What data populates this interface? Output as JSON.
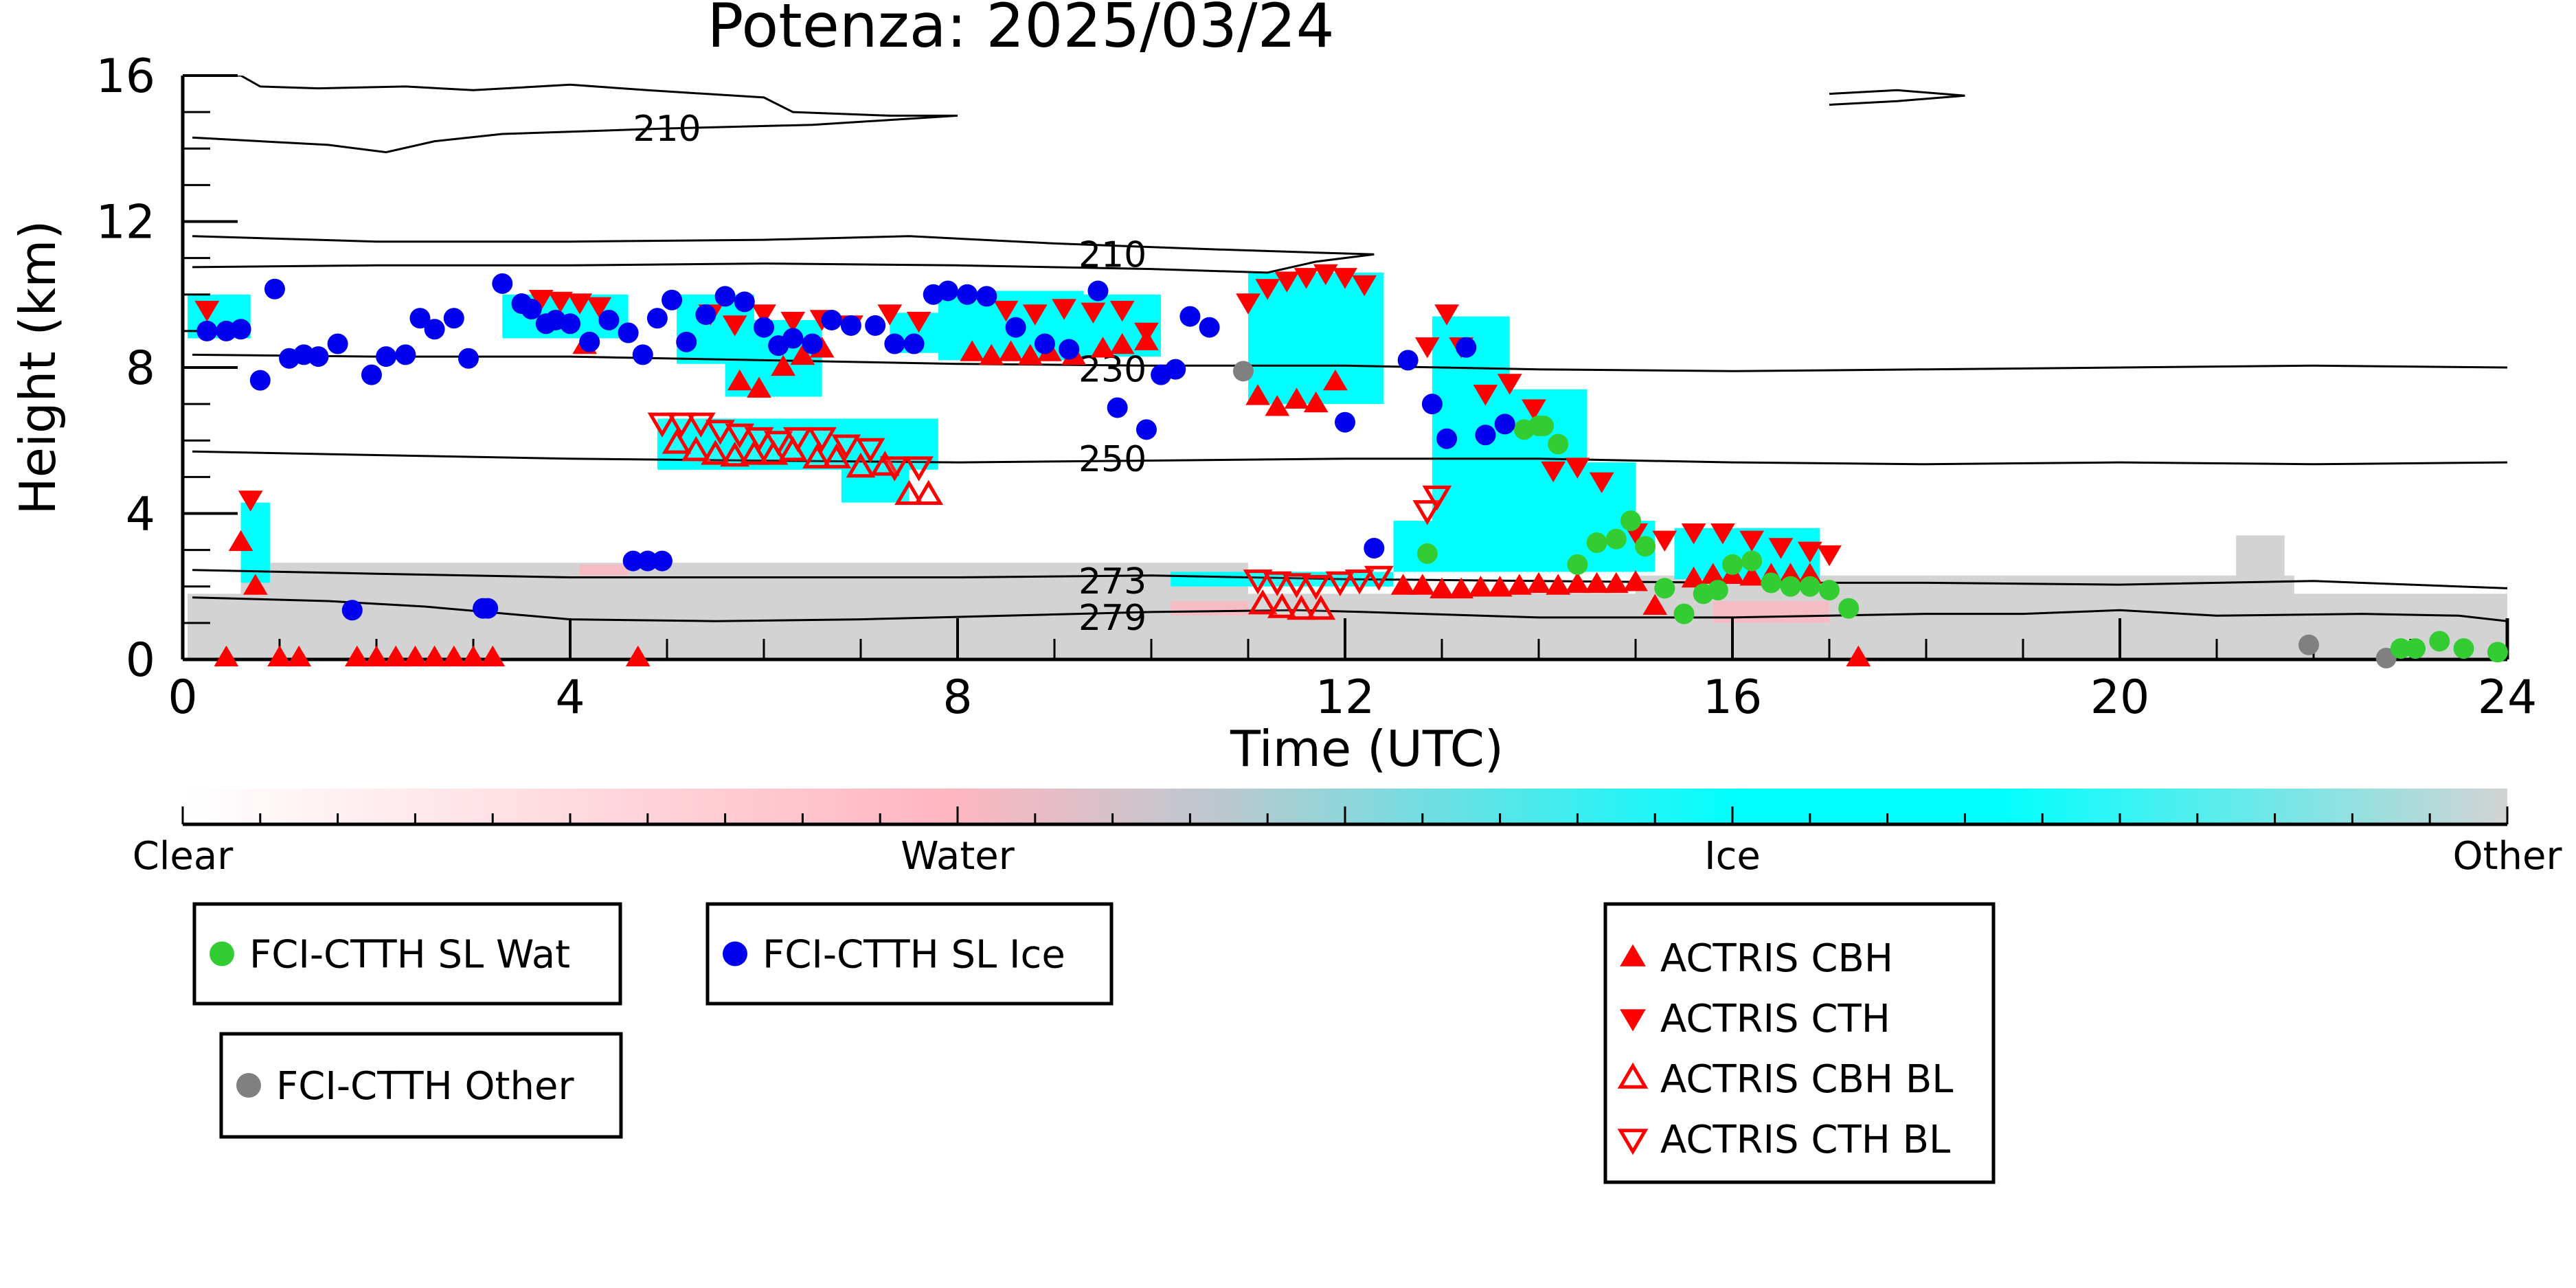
{
  "chart_data": {
    "type": "scatter",
    "title": "Potenza: 2025/03/24",
    "xlabel": "Time (UTC)",
    "ylabel": "Height (km)",
    "xlim": [
      0,
      24
    ],
    "ylim": [
      0,
      16
    ],
    "x_ticks": [
      "0",
      "4",
      "8",
      "12",
      "16",
      "20",
      "24"
    ],
    "y_ticks": [
      "0",
      "4",
      "8",
      "12",
      "16"
    ],
    "grid": false,
    "colors": {
      "water": "#00cc33",
      "wat_marker": "#33cc33",
      "ice_marker": "#0000ee",
      "other_marker": "#808080",
      "actris": "#ff0000",
      "ice_fill": "#00ffff",
      "other_fill": "#d3d3d3",
      "water_fill": "#ffb6c1"
    },
    "colorbar": {
      "labels": [
        "Clear",
        "Water",
        "Ice",
        "Other"
      ],
      "stops": [
        "#ffffff",
        "#ffb6c1",
        "#00ffff",
        "#d3d3d3"
      ]
    },
    "contours": [
      {
        "label": "210",
        "points": [
          [
            0.1,
            16.0
          ],
          [
            0.6,
            16.0
          ],
          [
            0.8,
            15.7
          ],
          [
            1.4,
            15.65
          ],
          [
            2.3,
            15.7
          ],
          [
            3.0,
            15.6
          ],
          [
            4.0,
            15.75
          ],
          [
            4.8,
            15.6
          ],
          [
            6.0,
            15.4
          ],
          [
            6.3,
            15.0
          ],
          [
            7.3,
            14.9
          ],
          [
            8.0,
            14.9
          ],
          [
            6.5,
            14.65
          ],
          [
            5.0,
            14.55
          ],
          [
            3.3,
            14.4
          ],
          [
            2.6,
            14.2
          ],
          [
            2.1,
            13.9
          ],
          [
            1.5,
            14.1
          ],
          [
            0.1,
            14.3
          ]
        ]
      },
      {
        "label": "210",
        "points": [
          [
            0.1,
            11.6
          ],
          [
            2.0,
            11.45
          ],
          [
            4.0,
            11.45
          ],
          [
            6.0,
            11.5
          ],
          [
            7.5,
            11.6
          ],
          [
            9.0,
            11.4
          ],
          [
            10.5,
            11.25
          ],
          [
            11.7,
            11.15
          ],
          [
            12.3,
            11.1
          ],
          [
            11.7,
            10.9
          ],
          [
            11.2,
            10.6
          ],
          [
            10.0,
            10.7
          ],
          [
            8.0,
            10.8
          ],
          [
            6.0,
            10.85
          ],
          [
            4.0,
            10.8
          ],
          [
            2.0,
            10.8
          ],
          [
            0.1,
            10.75
          ]
        ]
      },
      {
        "label": "",
        "points": [
          [
            17.0,
            15.2
          ],
          [
            17.7,
            15.3
          ],
          [
            18.4,
            15.45
          ],
          [
            17.7,
            15.6
          ],
          [
            17.0,
            15.5
          ]
        ]
      },
      {
        "label": "230",
        "points": [
          [
            0.1,
            8.35
          ],
          [
            2.0,
            8.3
          ],
          [
            4.0,
            8.3
          ],
          [
            6.0,
            8.2
          ],
          [
            8.0,
            8.1
          ],
          [
            10.0,
            8.05
          ],
          [
            12.0,
            8.05
          ],
          [
            14.0,
            7.95
          ],
          [
            16.0,
            7.9
          ],
          [
            18.0,
            7.95
          ],
          [
            20.0,
            8.0
          ],
          [
            22.0,
            8.05
          ],
          [
            24.0,
            8.0
          ]
        ]
      },
      {
        "label": "250",
        "points": [
          [
            0.1,
            5.7
          ],
          [
            2.0,
            5.6
          ],
          [
            4.0,
            5.5
          ],
          [
            6.0,
            5.45
          ],
          [
            8.0,
            5.4
          ],
          [
            10.0,
            5.45
          ],
          [
            12.0,
            5.5
          ],
          [
            14.0,
            5.5
          ],
          [
            16.0,
            5.4
          ],
          [
            18.0,
            5.35
          ],
          [
            20.0,
            5.4
          ],
          [
            22.0,
            5.35
          ],
          [
            24.0,
            5.4
          ]
        ]
      },
      {
        "label": "273",
        "points": [
          [
            0.1,
            2.45
          ],
          [
            2.0,
            2.35
          ],
          [
            4.0,
            2.25
          ],
          [
            6.0,
            2.25
          ],
          [
            8.0,
            2.25
          ],
          [
            10.0,
            2.3
          ],
          [
            11.0,
            2.25
          ],
          [
            12.0,
            2.2
          ],
          [
            14.0,
            2.15
          ],
          [
            16.0,
            2.1
          ],
          [
            18.0,
            2.1
          ],
          [
            20.0,
            2.05
          ],
          [
            22.0,
            2.15
          ],
          [
            24.0,
            1.95
          ]
        ]
      },
      {
        "label": "279",
        "points": [
          [
            0.1,
            1.7
          ],
          [
            1.5,
            1.6
          ],
          [
            2.5,
            1.45
          ],
          [
            4.0,
            1.1
          ],
          [
            5.5,
            1.05
          ],
          [
            7.0,
            1.1
          ],
          [
            8.5,
            1.2
          ],
          [
            10.0,
            1.3
          ],
          [
            11.5,
            1.35
          ],
          [
            12.2,
            1.3
          ],
          [
            14.0,
            1.15
          ],
          [
            16.0,
            1.15
          ],
          [
            18.0,
            1.25
          ],
          [
            19.0,
            1.25
          ],
          [
            20.0,
            1.35
          ],
          [
            21.0,
            1.2
          ],
          [
            22.5,
            1.25
          ],
          [
            23.5,
            1.2
          ],
          [
            24.0,
            1.05
          ]
        ]
      }
    ],
    "series": [
      {
        "name": "FCI-CTTH SL Wat",
        "marker": "circle",
        "color": "#33cc33",
        "x": [
          12.85,
          14.0,
          14.2,
          14.4,
          14.6,
          14.8,
          14.95,
          15.1,
          15.3,
          15.5,
          15.7,
          15.85,
          16.0,
          16.2,
          16.4,
          16.6,
          16.8,
          17.0,
          17.2,
          13.85,
          14.05,
          22.9,
          23.05,
          23.3,
          23.55,
          23.9
        ],
        "y": [
          2.9,
          6.4,
          5.9,
          2.6,
          3.2,
          3.3,
          3.8,
          3.1,
          1.95,
          1.25,
          1.8,
          1.9,
          2.6,
          2.7,
          2.1,
          2.0,
          2.0,
          1.9,
          1.4,
          6.3,
          6.4,
          0.3,
          0.3,
          0.5,
          0.3,
          0.2
        ]
      },
      {
        "name": "FCI-CTTH SL Ice",
        "marker": "circle",
        "color": "#0000ee",
        "x": [
          0.25,
          0.45,
          0.6,
          0.8,
          0.95,
          1.1,
          1.25,
          1.4,
          1.6,
          1.95,
          2.1,
          2.3,
          2.45,
          2.6,
          2.8,
          2.95,
          3.1,
          3.3,
          3.5,
          3.6,
          3.75,
          3.85,
          4.0,
          4.2,
          4.4,
          4.6,
          4.75,
          4.9,
          5.05,
          5.2,
          5.4,
          5.6,
          5.8,
          6.0,
          6.15,
          6.3,
          6.5,
          6.7,
          6.9,
          7.15,
          7.35,
          7.55,
          7.75,
          7.9,
          8.1,
          8.3,
          8.6,
          8.9,
          9.15,
          9.45,
          9.65,
          9.95,
          10.1,
          10.25,
          10.4,
          10.6,
          12.0,
          12.3,
          12.65,
          12.9,
          13.05,
          13.25,
          13.45,
          13.65,
          1.75,
          3.15,
          4.65,
          4.8,
          4.95
        ],
        "y": [
          9.0,
          9.0,
          9.05,
          7.65,
          10.15,
          8.25,
          8.35,
          8.3,
          8.65,
          7.8,
          8.3,
          8.35,
          9.35,
          9.05,
          9.35,
          8.25,
          1.4,
          10.3,
          9.75,
          9.6,
          9.2,
          9.3,
          9.2,
          8.7,
          9.3,
          8.95,
          8.35,
          9.35,
          9.85,
          8.7,
          9.45,
          9.95,
          9.8,
          9.1,
          8.6,
          8.8,
          8.65,
          9.3,
          9.15,
          9.15,
          8.65,
          8.65,
          10.0,
          10.1,
          10.0,
          9.95,
          9.1,
          8.65,
          8.5,
          10.1,
          6.9,
          6.3,
          7.8,
          7.95,
          9.4,
          9.1,
          6.5,
          3.05,
          8.2,
          7.0,
          6.05,
          8.55,
          6.15,
          6.45,
          1.35,
          1.4,
          2.7,
          2.7,
          2.7
        ]
      },
      {
        "name": "FCI-CTTH Other",
        "marker": "circle",
        "color": "#808080",
        "x": [
          10.95,
          21.95,
          22.75
        ],
        "y": [
          7.9,
          0.4,
          0.05
        ]
      },
      {
        "name": "ACTRIS CBH",
        "marker": "triangle-up",
        "color": "#ff0000",
        "filled": true,
        "x": [
          0.6,
          0.75,
          0.45,
          1.0,
          1.2,
          1.8,
          2.0,
          2.2,
          2.4,
          2.6,
          2.8,
          3.0,
          3.2,
          4.7,
          4.15,
          5.75,
          5.95,
          6.2,
          6.4,
          6.6,
          8.15,
          8.35,
          8.55,
          8.75,
          8.95,
          9.2,
          9.5,
          9.7,
          9.95,
          11.1,
          11.3,
          11.5,
          11.7,
          11.9,
          12.6,
          12.8,
          13.0,
          13.2,
          13.4,
          13.6,
          13.8,
          14.0,
          14.2,
          14.4,
          14.6,
          14.8,
          15.0,
          15.2,
          15.6,
          15.8,
          16.0,
          16.2,
          16.4,
          16.6,
          16.8,
          17.3
        ],
        "y": [
          3.2,
          2.0,
          0.05,
          0.05,
          0.05,
          0.05,
          0.05,
          0.05,
          0.05,
          0.05,
          0.05,
          0.05,
          0.05,
          0.05,
          8.6,
          7.6,
          7.4,
          8.0,
          8.3,
          8.5,
          8.4,
          8.3,
          8.4,
          8.3,
          8.4,
          8.3,
          8.5,
          8.6,
          8.7,
          7.2,
          6.9,
          7.1,
          7.0,
          7.6,
          2.0,
          2.0,
          1.9,
          1.9,
          1.95,
          1.95,
          2.0,
          2.05,
          2.0,
          2.05,
          2.05,
          2.05,
          2.1,
          1.45,
          2.2,
          2.3,
          2.3,
          2.25,
          2.3,
          2.3,
          2.3,
          0.05
        ],
        "note": "ground-level triangles near 0 km"
      },
      {
        "name": "ACTRIS CTH",
        "marker": "triangle-down",
        "color": "#ff0000",
        "filled": true,
        "x": [
          0.25,
          0.7,
          3.7,
          3.9,
          4.1,
          4.3,
          5.45,
          5.7,
          6.0,
          6.3,
          6.6,
          6.9,
          7.3,
          7.6,
          8.5,
          8.8,
          9.1,
          9.4,
          9.7,
          9.95,
          11.0,
          11.2,
          11.4,
          11.6,
          11.8,
          12.0,
          12.2,
          12.85,
          13.05,
          13.2,
          13.45,
          13.7,
          13.95,
          14.15,
          14.4,
          14.65,
          15.0,
          15.3,
          15.6,
          15.9,
          16.2,
          16.5,
          16.8,
          17.0
        ],
        "y": [
          9.6,
          4.4,
          9.9,
          9.85,
          9.8,
          9.7,
          9.5,
          9.2,
          9.5,
          9.3,
          9.35,
          9.2,
          9.5,
          9.3,
          9.6,
          9.5,
          9.65,
          9.55,
          9.6,
          9.0,
          9.8,
          10.2,
          10.4,
          10.5,
          10.6,
          10.5,
          10.3,
          8.6,
          9.5,
          8.6,
          7.3,
          7.6,
          6.9,
          5.2,
          5.3,
          4.9,
          3.5,
          3.3,
          3.5,
          3.5,
          3.3,
          3.1,
          3.0,
          2.9
        ]
      },
      {
        "name": "ACTRIS CBH BL",
        "marker": "triangle-up",
        "color": "#ff0000",
        "filled": false,
        "x": [
          5.1,
          5.3,
          5.5,
          5.7,
          5.9,
          6.1,
          6.3,
          6.55,
          6.75,
          7.0,
          7.25,
          7.5,
          7.7,
          11.15,
          11.35,
          11.55,
          11.75
        ],
        "y": [
          5.9,
          5.7,
          5.6,
          5.55,
          5.6,
          5.6,
          5.7,
          5.5,
          5.5,
          5.25,
          5.3,
          4.5,
          4.5,
          1.5,
          1.4,
          1.35,
          1.35
        ]
      },
      {
        "name": "ACTRIS CTH BL",
        "marker": "triangle-down",
        "color": "#ff0000",
        "filled": false,
        "x": [
          4.95,
          5.15,
          5.35,
          5.55,
          5.75,
          5.95,
          6.15,
          6.35,
          6.6,
          6.85,
          7.1,
          7.35,
          7.6,
          11.1,
          11.3,
          11.5,
          11.7,
          11.95,
          12.15,
          12.35,
          12.85,
          12.95
        ],
        "y": [
          6.5,
          6.5,
          6.5,
          6.3,
          6.2,
          6.1,
          6.0,
          6.1,
          6.1,
          5.9,
          5.8,
          5.3,
          5.3,
          2.2,
          2.15,
          2.1,
          2.05,
          2.15,
          2.2,
          2.3,
          4.1,
          4.5
        ]
      }
    ],
    "regions": {
      "ice": [
        {
          "x0": 0.05,
          "x1": 0.7,
          "y0": 8.8,
          "y1": 10.0
        },
        {
          "x0": 0.6,
          "x1": 0.9,
          "y0": 2.1,
          "y1": 4.3
        },
        {
          "x0": 3.3,
          "x1": 4.6,
          "y0": 8.8,
          "y1": 10.0
        },
        {
          "x0": 5.1,
          "x1": 5.9,
          "y0": 8.1,
          "y1": 10.0
        },
        {
          "x0": 5.6,
          "x1": 6.6,
          "y0": 7.2,
          "y1": 9.3
        },
        {
          "x0": 4.9,
          "x1": 7.8,
          "y0": 5.2,
          "y1": 6.6
        },
        {
          "x0": 6.8,
          "x1": 7.5,
          "y0": 4.3,
          "y1": 5.5
        },
        {
          "x0": 7.3,
          "x1": 8.6,
          "y0": 8.4,
          "y1": 9.5
        },
        {
          "x0": 7.8,
          "x1": 9.3,
          "y0": 8.2,
          "y1": 10.1
        },
        {
          "x0": 9.0,
          "x1": 10.1,
          "y0": 8.3,
          "y1": 10.0
        },
        {
          "x0": 11.0,
          "x1": 12.4,
          "y0": 7.0,
          "y1": 10.6
        },
        {
          "x0": 12.9,
          "x1": 13.7,
          "y0": 2.6,
          "y1": 9.4
        },
        {
          "x0": 12.5,
          "x1": 15.2,
          "y0": 2.4,
          "y1": 3.8
        },
        {
          "x0": 13.5,
          "x1": 14.5,
          "y0": 3.5,
          "y1": 7.4
        },
        {
          "x0": 14.3,
          "x1": 15.0,
          "y0": 2.6,
          "y1": 5.4
        },
        {
          "x0": 15.4,
          "x1": 16.9,
          "y0": 2.2,
          "y1": 3.6
        },
        {
          "x0": 10.2,
          "x1": 12.5,
          "y0": 2.0,
          "y1": 2.4
        }
      ],
      "other": [
        {
          "x0": 0.05,
          "x1": 24.0,
          "y0": 0.0,
          "y1": 1.8
        },
        {
          "x0": 0.6,
          "x1": 11.0,
          "y0": 1.6,
          "y1": 2.65
        },
        {
          "x0": 15.0,
          "x1": 21.8,
          "y0": 1.6,
          "y1": 2.3
        },
        {
          "x0": 21.2,
          "x1": 21.7,
          "y0": 1.6,
          "y1": 3.4
        }
      ],
      "water": [
        {
          "x0": 4.1,
          "x1": 4.6,
          "y0": 2.3,
          "y1": 2.6
        },
        {
          "x0": 10.2,
          "x1": 11.0,
          "y0": 1.2,
          "y1": 1.6
        },
        {
          "x0": 15.8,
          "x1": 17.0,
          "y0": 1.0,
          "y1": 1.6
        }
      ]
    }
  },
  "legend_groups": [
    [
      "FCI-CTTH SL Wat"
    ],
    [
      "FCI-CTTH SL Ice"
    ],
    [
      "FCI-CTTH Other"
    ],
    [
      "ACTRIS CBH",
      "ACTRIS CTH",
      "ACTRIS CBH BL",
      "ACTRIS CTH BL"
    ]
  ]
}
